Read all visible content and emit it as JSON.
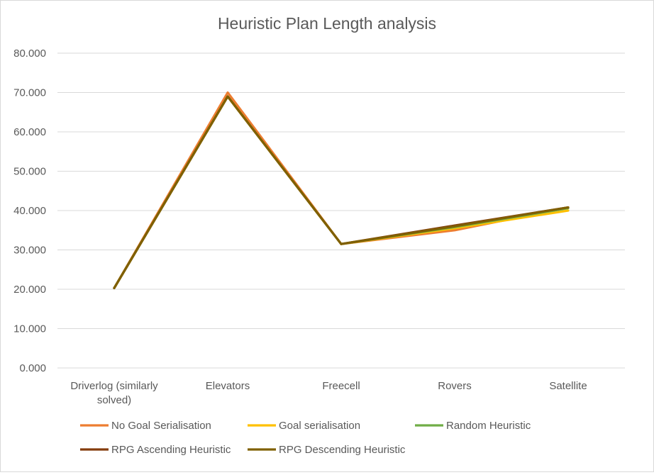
{
  "chart_data": {
    "type": "line",
    "title": "Heuristic Plan Length analysis",
    "xlabel": "",
    "ylabel": "",
    "categories": [
      "Driverlog (similarly solved)",
      "Elevators",
      "Freecell",
      "Rovers",
      "Satellite"
    ],
    "ylim": [
      0,
      80
    ],
    "yticks": [
      "0.000",
      "10.000",
      "20.000",
      "30.000",
      "40.000",
      "50.000",
      "60.000",
      "70.000",
      "80.000"
    ],
    "grid": true,
    "legend_position": "bottom",
    "series": [
      {
        "name": "No Goal Serialisation",
        "color": "#ED7D31",
        "values": [
          20.3,
          70.0,
          31.5,
          35.0,
          40.8
        ]
      },
      {
        "name": "Goal serialisation",
        "color": "#FFC000",
        "values": [
          20.3,
          69.0,
          31.5,
          35.5,
          40.0
        ]
      },
      {
        "name": "Random Heuristic",
        "color": "#70AD47",
        "values": [
          20.3,
          69.0,
          31.5,
          35.8,
          40.6
        ]
      },
      {
        "name": "RPG Ascending Heuristic",
        "color": "#843C0C",
        "values": [
          20.3,
          69.0,
          31.5,
          36.2,
          40.8
        ]
      },
      {
        "name": "RPG Descending Heuristic",
        "color": "#7F6000",
        "values": [
          20.3,
          69.0,
          31.5,
          36.0,
          40.8
        ]
      }
    ]
  }
}
